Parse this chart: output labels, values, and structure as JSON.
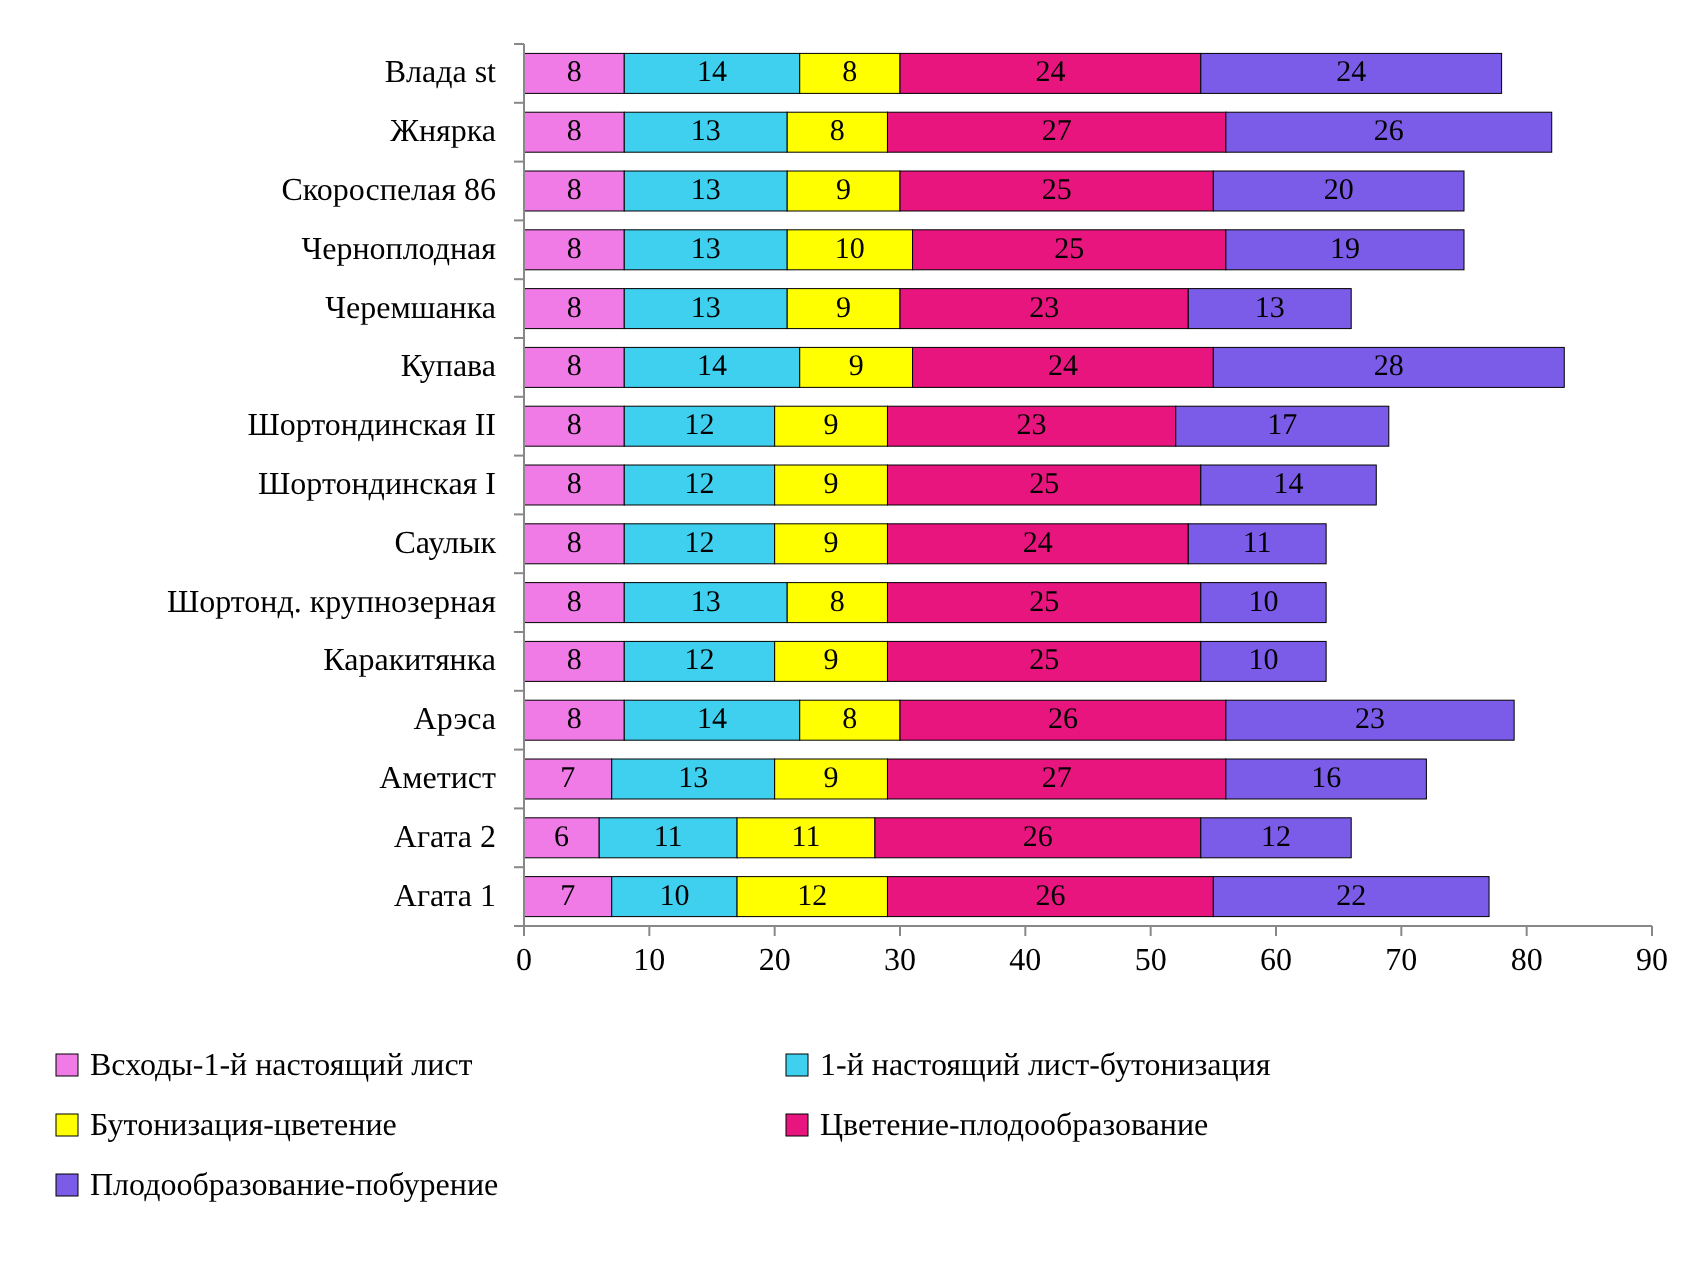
{
  "chart_data": {
    "type": "bar",
    "orientation": "horizontal",
    "stacked": true,
    "data_labels": true,
    "grid": false,
    "legend": "bottom",
    "categories": [
      "Влада st",
      "Жнярка",
      "Скороспелая 86",
      "Черноплодная",
      "Черемшанка",
      "Купава",
      "Шортондинская II",
      "Шортондинская I",
      "Саулык",
      "Шортонд. крупнозерная",
      "Каракитянка",
      "Арэса",
      "Аметист",
      "Агата 2",
      "Агата 1"
    ],
    "xlim": [
      0,
      90
    ],
    "xticks": [
      0,
      10,
      20,
      30,
      40,
      50,
      60,
      70,
      80,
      90
    ],
    "series": [
      {
        "name": "Всходы-1-й настоящий лист",
        "color": "#f07ae6",
        "values": [
          8,
          8,
          8,
          8,
          8,
          8,
          8,
          8,
          8,
          8,
          8,
          8,
          7,
          6,
          7
        ]
      },
      {
        "name": "1-й настоящий лист-бутонизация",
        "color": "#3fd0f0",
        "values": [
          14,
          13,
          13,
          13,
          13,
          14,
          12,
          12,
          12,
          13,
          12,
          14,
          13,
          11,
          10
        ]
      },
      {
        "name": "Бутонизация-цветение",
        "color": "#ffff00",
        "values": [
          8,
          8,
          9,
          10,
          9,
          9,
          9,
          9,
          9,
          8,
          9,
          8,
          9,
          11,
          12
        ]
      },
      {
        "name": "Цветение-плодообразование",
        "color": "#e8157f",
        "values": [
          24,
          27,
          25,
          25,
          23,
          24,
          23,
          25,
          24,
          25,
          25,
          26,
          27,
          26,
          26
        ]
      },
      {
        "name": "Плодообразование-побурение",
        "color": "#7b5ce8",
        "values": [
          24,
          26,
          20,
          19,
          13,
          28,
          17,
          14,
          11,
          10,
          10,
          23,
          16,
          12,
          22
        ]
      }
    ]
  }
}
